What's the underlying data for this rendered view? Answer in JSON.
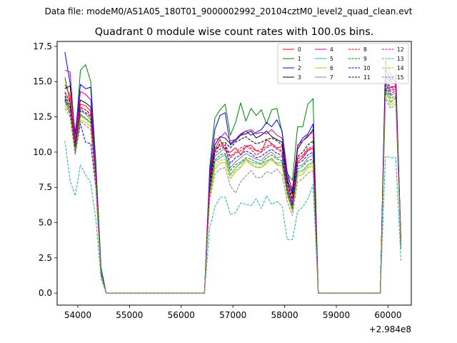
{
  "suptitle": "Data file: modeM0/AS1A05_180T01_9000002992_20104cztM0_level2_quad_clean.evt",
  "chart_data": {
    "type": "line",
    "title": "Quadrant 0 module wise count rates with 100.0s bins.",
    "xlabel": "",
    "ylabel": "",
    "x_offset_label": "+2.984e8",
    "xlim": [
      53600,
      60450
    ],
    "ylim": [
      -0.85,
      17.85
    ],
    "xticks": [
      54000,
      55000,
      56000,
      57000,
      58000,
      59000,
      60000
    ],
    "xtick_labels": [
      "54000",
      "55000",
      "56000",
      "57000",
      "58000",
      "59000",
      "60000"
    ],
    "yticks": [
      0.0,
      2.5,
      5.0,
      7.5,
      10.0,
      12.5,
      15.0,
      17.5
    ],
    "ytick_labels": [
      "0.0",
      "2.5",
      "5.0",
      "7.5",
      "10.0",
      "12.5",
      "15.0",
      "17.5"
    ],
    "grid": false,
    "legend_location": "top-right",
    "legend_columns": 4,
    "x": [
      53750,
      53850,
      53950,
      54050,
      54150,
      54250,
      54350,
      54450,
      54550,
      54650,
      56450,
      56550,
      56650,
      56750,
      56850,
      56950,
      57050,
      57150,
      57250,
      57350,
      57450,
      57550,
      57650,
      57750,
      57850,
      57950,
      58050,
      58150,
      58250,
      58350,
      58450,
      58550,
      58650,
      58750,
      59850,
      59950,
      60050,
      60150,
      60250
    ],
    "series": [
      {
        "name": "0",
        "color": "#ff0000",
        "dash": "solid",
        "values": [
          14.8,
          14.0,
          10.8,
          13.4,
          13.3,
          12.9,
          8.2,
          1.4,
          0,
          0,
          0,
          7.8,
          10.2,
          10.9,
          10.1,
          10.0,
          10.3,
          9.8,
          10.4,
          10.5,
          10.1,
          10.0,
          10.9,
          10.6,
          10.3,
          10.4,
          8.0,
          6.4,
          9.3,
          9.6,
          10.1,
          10.3,
          0,
          0,
          0,
          14.5,
          14.6,
          14.7,
          3.5
        ]
      },
      {
        "name": "1",
        "color": "#008000",
        "dash": "solid",
        "values": [
          15.3,
          13.6,
          10.7,
          15.8,
          16.2,
          15.0,
          9.2,
          1.8,
          0,
          0,
          0,
          8.9,
          12.4,
          13.0,
          13.4,
          11.2,
          12.1,
          13.5,
          12.2,
          13.1,
          12.6,
          13.0,
          12.0,
          13.0,
          13.1,
          11.4,
          8.5,
          8.0,
          11.8,
          11.8,
          13.4,
          13.8,
          0,
          0,
          0,
          16.5,
          15.5,
          14.9,
          3.7
        ]
      },
      {
        "name": "2",
        "color": "#0000ff",
        "dash": "solid",
        "values": [
          17.1,
          14.9,
          11.3,
          14.8,
          14.5,
          14.6,
          8.6,
          1.5,
          0,
          0,
          0,
          8.5,
          11.6,
          12.6,
          12.8,
          10.5,
          10.8,
          11.2,
          11.5,
          11.2,
          11.4,
          11.6,
          12.1,
          11.8,
          12.3,
          11.5,
          8.6,
          7.2,
          10.4,
          11.0,
          11.3,
          12.0,
          0,
          0,
          0,
          15.9,
          15.1,
          15.5,
          3.6
        ]
      },
      {
        "name": "3",
        "color": "#000000",
        "dash": "solid",
        "values": [
          14.5,
          14.7,
          11.3,
          13.7,
          13.5,
          13.2,
          8.3,
          1.4,
          0,
          0,
          0,
          8.0,
          10.5,
          11.1,
          11.0,
          10.6,
          10.9,
          11.2,
          11.3,
          11.5,
          11.0,
          11.2,
          11.5,
          11.1,
          10.9,
          10.7,
          8.1,
          7.0,
          10.2,
          10.8,
          11.1,
          11.6,
          0,
          0,
          0,
          15.3,
          15.0,
          14.8,
          3.5
        ]
      },
      {
        "name": "4",
        "color": "#bf00bf",
        "dash": "solid",
        "values": [
          15.8,
          15.7,
          10.9,
          14.3,
          14.1,
          13.7,
          8.4,
          1.4,
          0,
          0,
          0,
          8.3,
          10.9,
          11.0,
          11.4,
          10.8,
          10.9,
          11.3,
          11.5,
          11.6,
          11.3,
          11.4,
          11.3,
          11.6,
          11.2,
          11.0,
          8.3,
          7.4,
          10.5,
          10.8,
          11.2,
          11.4,
          0,
          0,
          0,
          15.4,
          15.2,
          15.0,
          3.5
        ]
      },
      {
        "name": "5",
        "color": "#20b2aa",
        "dash": "solid",
        "values": [
          13.6,
          13.2,
          10.2,
          12.6,
          12.4,
          12.1,
          7.7,
          1.3,
          0,
          0,
          0,
          7.0,
          9.3,
          9.6,
          9.8,
          8.4,
          8.9,
          9.2,
          9.5,
          9.3,
          9.2,
          9.1,
          9.4,
          9.5,
          9.2,
          9.3,
          7.1,
          5.9,
          8.6,
          8.7,
          9.1,
          9.3,
          0,
          0,
          0,
          14.4,
          13.5,
          13.9,
          3.3
        ]
      },
      {
        "name": "6",
        "color": "#bfbf00",
        "dash": "solid",
        "values": [
          13.3,
          12.8,
          10.0,
          12.3,
          12.1,
          11.8,
          7.5,
          1.3,
          0,
          0,
          0,
          6.8,
          8.8,
          9.2,
          9.3,
          8.1,
          8.6,
          8.9,
          9.5,
          9.1,
          8.9,
          8.9,
          9.2,
          9.6,
          9.1,
          9.0,
          6.9,
          5.8,
          8.3,
          8.4,
          8.9,
          9.0,
          0,
          0,
          0,
          14.2,
          13.6,
          13.8,
          3.2
        ]
      },
      {
        "name": "7",
        "color": "#808080",
        "dash": "solid",
        "values": [
          13.9,
          13.1,
          10.3,
          12.9,
          12.7,
          12.3,
          7.8,
          1.3,
          0,
          0,
          0,
          7.3,
          9.7,
          10.0,
          10.3,
          8.9,
          9.3,
          9.6,
          9.9,
          9.7,
          9.5,
          9.4,
          9.8,
          10.0,
          9.6,
          9.7,
          7.3,
          6.2,
          9.0,
          9.1,
          9.6,
          9.8,
          0,
          0,
          0,
          14.6,
          14.0,
          14.2,
          3.4
        ]
      },
      {
        "name": "8",
        "color": "#ff0000",
        "dash": "dashed",
        "values": [
          14.2,
          13.5,
          10.5,
          13.1,
          13.0,
          12.6,
          8.0,
          1.4,
          0,
          0,
          0,
          7.7,
          10.1,
          10.4,
          10.5,
          9.6,
          9.9,
          10.1,
          10.4,
          10.2,
          9.8,
          10.0,
          10.3,
          10.5,
          10.2,
          10.0,
          7.6,
          6.3,
          9.5,
          9.7,
          10.2,
          10.3,
          0,
          0,
          0,
          14.8,
          14.3,
          14.5,
          3.4
        ]
      },
      {
        "name": "9",
        "color": "#008000",
        "dash": "dashed",
        "values": [
          13.8,
          13.0,
          10.1,
          12.7,
          12.4,
          12.1,
          7.7,
          1.3,
          0,
          0,
          0,
          7.2,
          9.4,
          9.8,
          9.9,
          8.7,
          9.1,
          9.3,
          9.6,
          9.5,
          9.3,
          9.2,
          9.6,
          9.8,
          9.5,
          9.4,
          7.2,
          6.0,
          8.8,
          9.0,
          9.4,
          9.5,
          0,
          0,
          0,
          14.5,
          13.8,
          14.0,
          3.3
        ]
      },
      {
        "name": "10",
        "color": "#0000ff",
        "dash": "dashed",
        "values": [
          13.7,
          12.7,
          9.9,
          12.0,
          10.7,
          10.6,
          7.4,
          1.3,
          0,
          0,
          0,
          7.4,
          9.9,
          10.2,
          10.4,
          9.2,
          9.6,
          9.8,
          10.1,
          9.9,
          9.6,
          9.7,
          10.0,
          10.2,
          9.9,
          9.8,
          7.4,
          6.1,
          9.2,
          9.4,
          9.8,
          10.0,
          0,
          0,
          0,
          14.9,
          14.1,
          14.4,
          3.4
        ]
      },
      {
        "name": "11",
        "color": "#000000",
        "dash": "dashed",
        "values": [
          14.0,
          13.3,
          10.4,
          13.0,
          12.8,
          12.5,
          7.9,
          1.4,
          0,
          0,
          0,
          7.6,
          10.0,
          10.6,
          10.7,
          10.3,
          10.7,
          10.9,
          11.1,
          10.8,
          10.6,
          10.7,
          10.9,
          11.0,
          10.8,
          10.5,
          7.9,
          6.7,
          9.7,
          10.0,
          10.5,
          10.8,
          0,
          0,
          0,
          15.1,
          14.6,
          14.6,
          3.5
        ]
      },
      {
        "name": "12",
        "color": "#bf00bf",
        "dash": "dashed",
        "values": [
          14.3,
          13.6,
          10.6,
          13.2,
          13.0,
          12.7,
          8.0,
          1.4,
          0,
          0,
          0,
          7.8,
          10.2,
          10.5,
          10.6,
          9.7,
          10.0,
          10.3,
          10.5,
          10.3,
          10.1,
          10.2,
          10.4,
          10.6,
          10.3,
          10.1,
          7.7,
          6.4,
          9.6,
          9.8,
          10.3,
          10.4,
          0,
          0,
          0,
          15.0,
          14.4,
          14.6,
          3.5
        ]
      },
      {
        "name": "13",
        "color": "#20b2aa",
        "dash": "dashed",
        "values": [
          10.8,
          8.0,
          6.9,
          9.1,
          8.4,
          7.8,
          5.2,
          1.0,
          0,
          0,
          0,
          4.6,
          6.1,
          6.8,
          6.8,
          5.6,
          5.7,
          6.4,
          6.3,
          6.2,
          6.7,
          6.0,
          6.9,
          6.3,
          6.5,
          6.2,
          3.8,
          3.8,
          5.8,
          6.1,
          6.7,
          7.7,
          0,
          0,
          0,
          9.7,
          9.6,
          9.6,
          2.3
        ]
      },
      {
        "name": "14",
        "color": "#bfbf00",
        "dash": "dashed",
        "values": [
          13.5,
          12.9,
          10.0,
          12.5,
          12.3,
          12.0,
          7.6,
          1.3,
          0,
          0,
          0,
          6.9,
          9.0,
          9.4,
          9.5,
          8.3,
          8.7,
          9.0,
          9.3,
          9.2,
          9.0,
          8.9,
          9.3,
          9.4,
          9.1,
          9.1,
          7.0,
          5.8,
          8.4,
          8.6,
          9.0,
          9.2,
          0,
          0,
          0,
          14.0,
          13.3,
          13.6,
          3.2
        ]
      },
      {
        "name": "15",
        "color": "#808080",
        "dash": "dashed",
        "values": [
          13.1,
          12.5,
          9.8,
          12.2,
          11.9,
          11.6,
          7.4,
          1.3,
          0,
          0,
          0,
          6.6,
          8.4,
          8.8,
          8.9,
          7.6,
          7.1,
          7.9,
          8.3,
          8.7,
          8.2,
          8.2,
          8.6,
          8.5,
          8.8,
          8.4,
          6.5,
          5.5,
          7.9,
          8.1,
          8.5,
          8.7,
          0,
          0,
          0,
          13.8,
          13.1,
          13.4,
          3.1
        ]
      }
    ]
  }
}
